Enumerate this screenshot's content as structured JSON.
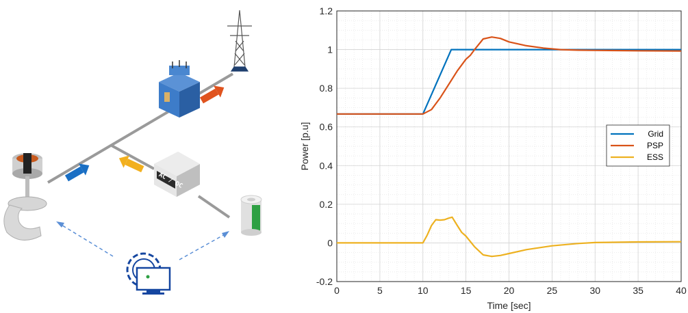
{
  "diagram": {
    "converter_label": "AC / DC"
  },
  "chart_data": {
    "type": "line",
    "xlabel": "Time [sec]",
    "ylabel": "Power [p.u]",
    "xlim": [
      0,
      40
    ],
    "ylim": [
      -0.2,
      1.2
    ],
    "xticks": [
      0,
      5,
      10,
      15,
      20,
      25,
      30,
      35,
      40
    ],
    "yticks": [
      -0.2,
      0,
      0.2,
      0.4,
      0.6,
      0.8,
      1,
      1.2
    ],
    "grid": true,
    "minor_grid": true,
    "legend_position": "right",
    "series": [
      {
        "name": "Grid",
        "color": "#0072BD",
        "x": [
          0,
          10,
          13.3,
          40
        ],
        "y": [
          0.667,
          0.667,
          1.0,
          1.0
        ]
      },
      {
        "name": "PSP",
        "color": "#D95319",
        "x": [
          0,
          10,
          11,
          12,
          13,
          14,
          15,
          15.5,
          16,
          17,
          18,
          19,
          20,
          22,
          24,
          26,
          28,
          30,
          35,
          40
        ],
        "y": [
          0.667,
          0.667,
          0.69,
          0.75,
          0.82,
          0.89,
          0.95,
          0.97,
          1.0,
          1.055,
          1.065,
          1.058,
          1.04,
          1.02,
          1.008,
          1.0,
          0.997,
          0.996,
          0.994,
          0.993
        ]
      },
      {
        "name": "ESS",
        "color": "#EDB120",
        "x": [
          0,
          10,
          10.5,
          11,
          11.5,
          12,
          12.5,
          13,
          13.4,
          14,
          14.5,
          15,
          16,
          17,
          18,
          19,
          20,
          22,
          25,
          28,
          30,
          35,
          40
        ],
        "y": [
          0,
          0,
          0.04,
          0.09,
          0.12,
          0.118,
          0.12,
          0.128,
          0.133,
          0.09,
          0.055,
          0.035,
          -0.02,
          -0.062,
          -0.07,
          -0.065,
          -0.055,
          -0.035,
          -0.015,
          -0.003,
          0.002,
          0.005,
          0.006
        ]
      }
    ]
  }
}
